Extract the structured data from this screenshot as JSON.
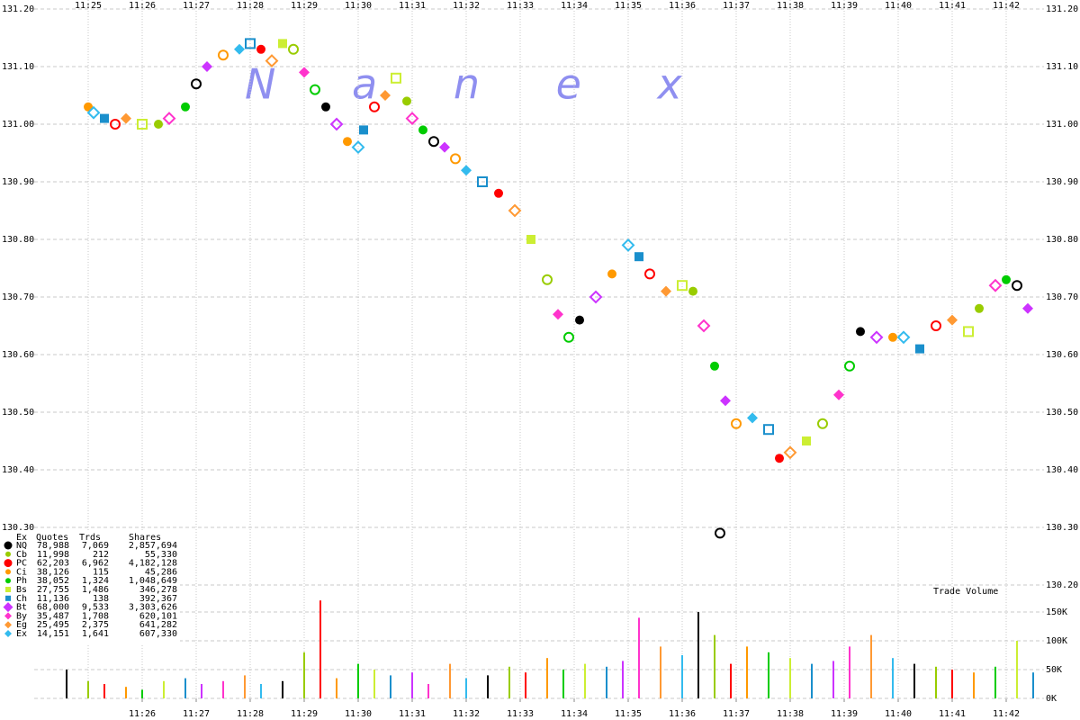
{
  "chart_data": {
    "type": "scatter",
    "watermark": "N a n e x",
    "xlim": [
      24,
      42.7
    ],
    "xticks": [
      {
        "value": 25,
        "label": "11:25"
      },
      {
        "value": 26,
        "label": "11:26"
      },
      {
        "value": 27,
        "label": "11:27"
      },
      {
        "value": 28,
        "label": "11:28"
      },
      {
        "value": 29,
        "label": "11:29"
      },
      {
        "value": 30,
        "label": "11:30"
      },
      {
        "value": 31,
        "label": "11:31"
      },
      {
        "value": 32,
        "label": "11:32"
      },
      {
        "value": 33,
        "label": "11:33"
      },
      {
        "value": 34,
        "label": "11:34"
      },
      {
        "value": 35,
        "label": "11:35"
      },
      {
        "value": 36,
        "label": "11:36"
      },
      {
        "value": 37,
        "label": "11:37"
      },
      {
        "value": 38,
        "label": "11:38"
      },
      {
        "value": 39,
        "label": "11:39"
      },
      {
        "value": 40,
        "label": "11:40"
      },
      {
        "value": 41,
        "label": "11:41"
      },
      {
        "value": 42,
        "label": "11:42"
      }
    ],
    "x2ticks": [
      {
        "value": 26,
        "label": "11:26"
      },
      {
        "value": 27,
        "label": "11:27"
      },
      {
        "value": 28,
        "label": "11:28"
      },
      {
        "value": 29,
        "label": "11:29"
      },
      {
        "value": 30,
        "label": "11:30"
      },
      {
        "value": 31,
        "label": "11:31"
      },
      {
        "value": 32,
        "label": "11:32"
      },
      {
        "value": 33,
        "label": "11:33"
      },
      {
        "value": 34,
        "label": "11:34"
      },
      {
        "value": 35,
        "label": "11:35"
      },
      {
        "value": 36,
        "label": "11:36"
      },
      {
        "value": 37,
        "label": "11:37"
      },
      {
        "value": 38,
        "label": "11:38"
      },
      {
        "value": 39,
        "label": "11:39"
      },
      {
        "value": 40,
        "label": "11:40"
      },
      {
        "value": 41,
        "label": "11:41"
      },
      {
        "value": 42,
        "label": "11:42"
      }
    ],
    "ylim": [
      130.2,
      131.2
    ],
    "yticks": [
      {
        "value": 130.2,
        "label": "130.20"
      },
      {
        "value": 130.3,
        "label": "130.30"
      },
      {
        "value": 130.4,
        "label": "130.40"
      },
      {
        "value": 130.5,
        "label": "130.50"
      },
      {
        "value": 130.6,
        "label": "130.60"
      },
      {
        "value": 130.7,
        "label": "130.70"
      },
      {
        "value": 130.8,
        "label": "130.80"
      },
      {
        "value": 130.9,
        "label": "130.90"
      },
      {
        "value": 131.0,
        "label": "131.00"
      },
      {
        "value": 131.1,
        "label": "131.10"
      },
      {
        "value": 131.2,
        "label": "131.20"
      }
    ],
    "grid": true,
    "series": [
      {
        "name": "Quotes",
        "x": [
          25.0,
          25.1,
          25.3,
          25.5,
          25.7,
          26.0,
          26.3,
          26.5,
          26.8,
          27.0,
          27.2,
          27.5,
          27.8,
          28.0,
          28.2,
          28.4,
          28.6,
          28.8,
          29.0,
          29.2,
          29.4,
          29.6,
          29.8,
          30.0,
          30.1,
          30.3,
          30.5,
          30.7,
          30.9,
          31.0,
          31.2,
          31.4,
          31.6,
          31.8,
          32.0,
          32.3,
          32.6,
          32.9,
          33.2,
          33.5,
          33.7,
          33.9,
          34.1,
          34.4,
          34.7,
          35.0,
          35.2,
          35.4,
          35.7,
          36.0,
          36.2,
          36.4,
          36.6,
          36.7,
          36.8,
          37.0,
          37.3,
          37.6,
          37.8,
          38.0,
          38.3,
          38.6,
          38.9,
          39.1,
          39.3,
          39.6,
          39.9,
          40.1,
          40.4,
          40.7,
          41.0,
          41.3,
          41.5,
          41.8,
          42.0,
          42.2,
          42.4
        ],
        "values": [
          131.03,
          131.02,
          131.01,
          131.0,
          131.01,
          131.0,
          131.0,
          131.01,
          131.03,
          131.07,
          131.1,
          131.12,
          131.13,
          131.14,
          131.13,
          131.11,
          131.14,
          131.13,
          131.09,
          131.06,
          131.03,
          131.0,
          130.97,
          130.96,
          130.99,
          131.03,
          131.05,
          131.08,
          131.04,
          131.01,
          130.99,
          130.97,
          130.96,
          130.94,
          130.92,
          130.9,
          130.88,
          130.85,
          130.8,
          130.73,
          130.67,
          130.63,
          130.66,
          130.7,
          130.74,
          130.79,
          130.77,
          130.74,
          130.71,
          130.72,
          130.71,
          130.65,
          130.58,
          130.29,
          130.52,
          130.48,
          130.49,
          130.47,
          130.42,
          130.43,
          130.45,
          130.48,
          130.53,
          130.58,
          130.64,
          130.63,
          130.63,
          130.63,
          130.61,
          130.65,
          130.66,
          130.64,
          130.68,
          130.72,
          130.73,
          130.72,
          130.68
        ]
      }
    ],
    "volume": {
      "title": "Trade Volume",
      "ylim": [
        0,
        200000
      ],
      "yticks": [
        {
          "value": 0,
          "label": "0K"
        },
        {
          "value": 50000,
          "label": "50K"
        },
        {
          "value": 100000,
          "label": "100K"
        },
        {
          "value": 150000,
          "label": "150K"
        }
      ],
      "x": [
        24.6,
        25.0,
        25.3,
        25.7,
        26.0,
        26.4,
        26.8,
        27.1,
        27.5,
        27.9,
        28.2,
        28.6,
        29.0,
        29.3,
        29.6,
        30.0,
        30.3,
        30.6,
        31.0,
        31.3,
        31.7,
        32.0,
        32.4,
        32.8,
        33.1,
        33.5,
        33.8,
        34.2,
        34.6,
        34.9,
        35.2,
        35.6,
        36.0,
        36.3,
        36.6,
        36.9,
        37.2,
        37.6,
        38.0,
        38.4,
        38.8,
        39.1,
        39.5,
        39.9,
        40.3,
        40.7,
        41.0,
        41.4,
        41.8,
        42.2,
        42.5
      ],
      "values": [
        50000,
        30000,
        25000,
        20000,
        15000,
        30000,
        35000,
        25000,
        30000,
        40000,
        25000,
        30000,
        80000,
        170000,
        35000,
        60000,
        50000,
        40000,
        45000,
        25000,
        60000,
        35000,
        40000,
        55000,
        45000,
        70000,
        50000,
        60000,
        55000,
        65000,
        140000,
        90000,
        75000,
        150000,
        110000,
        60000,
        90000,
        80000,
        70000,
        60000,
        65000,
        90000,
        110000,
        70000,
        60000,
        55000,
        50000,
        45000,
        55000,
        100000,
        45000
      ]
    },
    "legend_table": {
      "columns": [
        "Ex",
        "Quotes",
        "Trds",
        "Shares"
      ],
      "rows": [
        {
          "ex": "NQ",
          "quotes": "78,988",
          "trds": "7,069",
          "shares": "2,857,694",
          "color": "#000000",
          "shape": "circle"
        },
        {
          "ex": "Cb",
          "quotes": "11,998",
          "trds": "212",
          "shares": "55,330",
          "color": "#99cc00",
          "shape": "circle"
        },
        {
          "ex": "PC",
          "quotes": "62,203",
          "trds": "6,962",
          "shares": "4,182,128",
          "color": "#ff0000",
          "shape": "circle"
        },
        {
          "ex": "Ci",
          "quotes": "38,126",
          "trds": "115",
          "shares": "45,286",
          "color": "#ff9900",
          "shape": "circle"
        },
        {
          "ex": "Ph",
          "quotes": "38,052",
          "trds": "1,324",
          "shares": "1,048,649",
          "color": "#00cc00",
          "shape": "circle"
        },
        {
          "ex": "Bs",
          "quotes": "27,755",
          "trds": "1,486",
          "shares": "346,278",
          "color": "#ccee33",
          "shape": "square"
        },
        {
          "ex": "Ch",
          "quotes": "11,136",
          "trds": "138",
          "shares": "392,367",
          "color": "#1a8fcc",
          "shape": "square"
        },
        {
          "ex": "Bt",
          "quotes": "68,000",
          "trds": "9,533",
          "shares": "3,303,626",
          "color": "#cc33ff",
          "shape": "diamond"
        },
        {
          "ex": "By",
          "quotes": "35,487",
          "trds": "1,708",
          "shares": "620,101",
          "color": "#ff33cc",
          "shape": "diamond"
        },
        {
          "ex": "Eg",
          "quotes": "25,495",
          "trds": "2,375",
          "shares": "641,282",
          "color": "#ff9933",
          "shape": "diamond"
        },
        {
          "ex": "Ex",
          "quotes": "14,151",
          "trds": "1,641",
          "shares": "607,330",
          "color": "#33bbee",
          "shape": "diamond"
        }
      ]
    }
  }
}
